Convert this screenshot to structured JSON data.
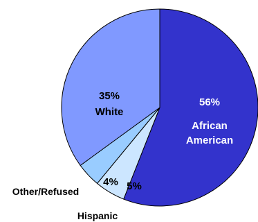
{
  "chart_data": {
    "type": "pie",
    "title": "",
    "slices": [
      {
        "name": "African American",
        "value": 56,
        "label": "56%",
        "color": "#3333cc"
      },
      {
        "name": "Hispanic",
        "value": 5,
        "label": "5%",
        "color": "#cce6ff"
      },
      {
        "name": "Other/Refused",
        "value": 4,
        "label": "4%",
        "color": "#99ccff"
      },
      {
        "name": "White",
        "value": 35,
        "label": "35%",
        "color": "#8099ff"
      }
    ],
    "start_angle": "12 o'clock",
    "direction": "clockwise",
    "legend": "none",
    "text_color": "#000000",
    "inner_text_color": "#ffffff"
  }
}
